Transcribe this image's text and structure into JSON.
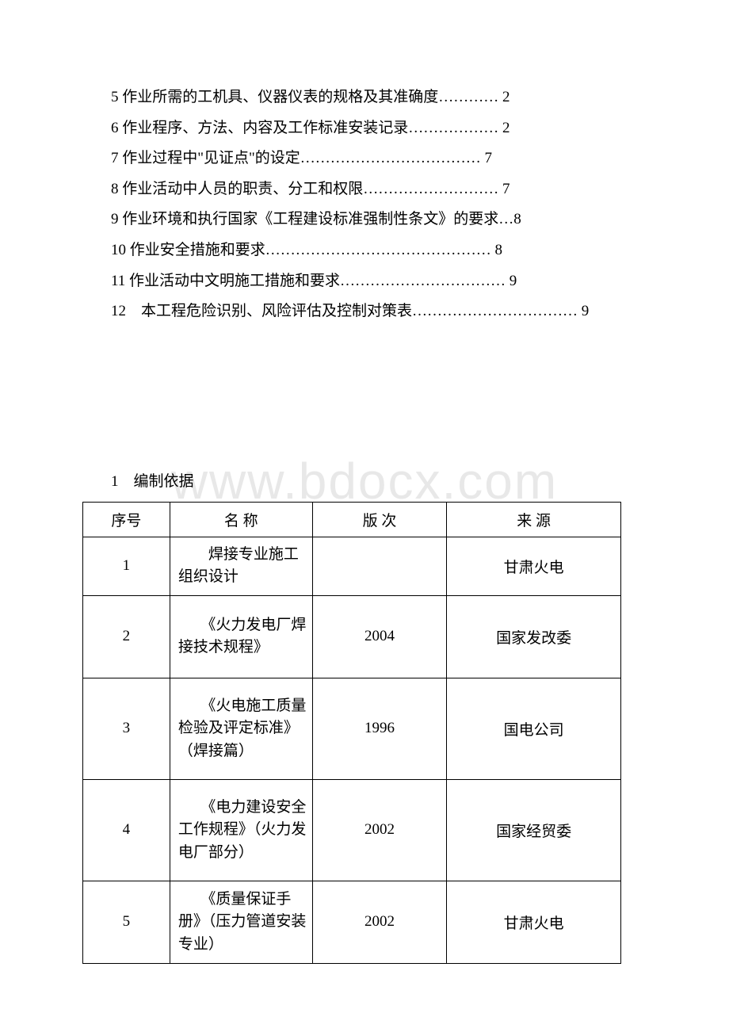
{
  "watermark": "www.bdocx.com",
  "toc": [
    {
      "text": "5 作业所需的工机具、仪器仪表的规格及其准确度………… 2"
    },
    {
      "text": "6 作业程序、方法、内容及工作标准安装记录……………… 2"
    },
    {
      "text": "7 作业过程中\"见证点\"的设定……………………………… 7"
    },
    {
      "text": "8 作业活动中人员的职责、分工和权限……………………… 7"
    },
    {
      "text": "9 作业环境和执行国家《工程建设标准强制性条文》的要求…8"
    },
    {
      "text": "10 作业安全措施和要求……………………………………… 8"
    },
    {
      "text": "11 作业活动中文明施工措施和要求…………………………… 9"
    },
    {
      "text": "12　本工程危险识别、风险评估及控制对策表…………………………… 9"
    }
  ],
  "section_heading": "1　编制依据",
  "table": {
    "headers": {
      "seq": "序号",
      "name": "名 称",
      "version": "版 次",
      "source": "来 源"
    },
    "rows": [
      {
        "seq": "1",
        "name": "　　焊接专业施工组织设计",
        "version": "",
        "source": "甘肃火电",
        "rowClass": "row-h1"
      },
      {
        "seq": "2",
        "name": "　　《火力发电厂焊接技术规程》",
        "version": "2004",
        "source": "国家发改委",
        "rowClass": "row-h2"
      },
      {
        "seq": "3",
        "name": "　　《火电施工质量检验及评定标准》（焊接篇）",
        "version": "1996",
        "source": "国电公司",
        "rowClass": "row-h3"
      },
      {
        "seq": "4",
        "name": "　　《电力建设安全工作规程》（火力发电厂部分）",
        "version": "2002",
        "source": "国家经贸委",
        "rowClass": "row-h3"
      },
      {
        "seq": "5",
        "name": "　　《质量保证手册》（压力管道安装专业）",
        "version": "2002",
        "source": "甘肃火电",
        "rowClass": "row-h2"
      }
    ]
  }
}
